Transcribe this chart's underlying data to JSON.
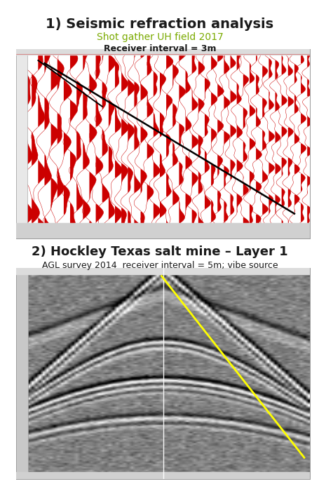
{
  "title1": "1) Seismic refraction analysis",
  "subtitle1": "Shot gather UH field 2017",
  "subtitle1_color": "#7aaa00",
  "subsubtitle1": "Receiver interval = 3m",
  "title2": "2) Hockley Texas salt mine – Layer 1",
  "subtitle2": "AGL survey 2014  receiver interval = 5m; vibe source",
  "bg_color": "#ffffff",
  "panel1_bg": "#ffffff",
  "line1_color": "#000000",
  "line2_color": "#ffff00",
  "seismic1_line_color": "#cc0000",
  "seismic1_fill_color": "#cc0000",
  "num_traces_1": 46,
  "num_samples_1": 200,
  "num_traces_2": 80,
  "num_samples_2": 150,
  "title1_fontsize": 14,
  "subtitle1_fontsize": 10,
  "subsubtitle1_fontsize": 9,
  "title2_fontsize": 13,
  "subtitle2_fontsize": 9
}
